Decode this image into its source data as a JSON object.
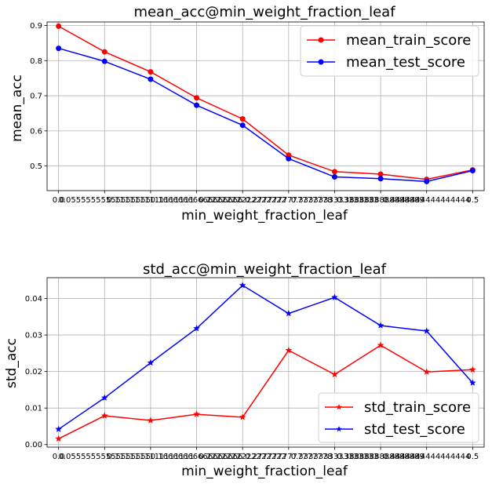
{
  "chart_data": [
    {
      "type": "line",
      "title": "mean_acc@min_weight_fraction_leaf",
      "xlabel": "min_weight_fraction_leaf",
      "ylabel": "mean_acc",
      "x": [
        0.0,
        0.05555555555555555,
        0.1111111111111111,
        0.16666666666666666,
        0.2222222222222222,
        0.2777777777777778,
        0.3333333333333333,
        0.3888888888888889,
        0.4444444444444444,
        0.5
      ],
      "xtick_labels": [
        "0.0",
        "0.05555555555555555",
        "0.1111111111111111",
        "0.16666666666666666",
        "0.2222222222222222",
        "0.2777777777777778",
        "0.3333333333333333",
        "0.3888888888888889",
        "0.4444444444444444",
        "0.5"
      ],
      "xlim": [
        -0.0139,
        0.5139
      ],
      "ylim": [
        0.43,
        0.91
      ],
      "yticks": [
        0.5,
        0.6,
        0.7,
        0.8,
        0.9
      ],
      "ytick_labels": [
        "0.5",
        "0.6",
        "0.7",
        "0.8",
        "0.9"
      ],
      "grid": true,
      "legend": "top-right",
      "marker": "circle",
      "series": [
        {
          "name": "mean_train_score",
          "color": "#ff0000",
          "values": [
            0.898,
            0.825,
            0.768,
            0.694,
            0.634,
            0.531,
            0.484,
            0.477,
            0.462,
            0.489
          ]
        },
        {
          "name": "mean_test_score",
          "color": "#0000ff",
          "values": [
            0.835,
            0.798,
            0.747,
            0.673,
            0.616,
            0.521,
            0.469,
            0.464,
            0.456,
            0.487
          ]
        }
      ]
    },
    {
      "type": "line",
      "title": "std_acc@min_weight_fraction_leaf",
      "xlabel": "min_weight_fraction_leaf",
      "ylabel": "std_acc",
      "x": [
        0.0,
        0.05555555555555555,
        0.1111111111111111,
        0.16666666666666666,
        0.2222222222222222,
        0.2777777777777778,
        0.3333333333333333,
        0.3888888888888889,
        0.4444444444444444,
        0.5
      ],
      "xtick_labels": [
        "0.0",
        "0.05555555555555555",
        "0.1111111111111111",
        "0.16666666666666666",
        "0.2222222222222222",
        "0.2777777777777778",
        "0.3333333333333333",
        "0.3888888888888889",
        "0.4444444444444444",
        "0.5"
      ],
      "xlim": [
        -0.0139,
        0.5139
      ],
      "ylim": [
        -0.0007,
        0.0457
      ],
      "yticks": [
        0.0,
        0.01,
        0.02,
        0.03,
        0.04
      ],
      "ytick_labels": [
        "0.00",
        "0.01",
        "0.02",
        "0.03",
        "0.04"
      ],
      "grid": true,
      "legend": "bottom-right",
      "marker": "star",
      "series": [
        {
          "name": "std_train_score",
          "color": "#ff0000",
          "values": [
            0.0016,
            0.0079,
            0.0066,
            0.0083,
            0.0075,
            0.0258,
            0.0192,
            0.0272,
            0.0199,
            0.0205
          ]
        },
        {
          "name": "std_test_score",
          "color": "#0000ff",
          "values": [
            0.0042,
            0.0128,
            0.0224,
            0.0318,
            0.0436,
            0.0359,
            0.0403,
            0.0326,
            0.0311,
            0.0169
          ]
        }
      ]
    }
  ]
}
